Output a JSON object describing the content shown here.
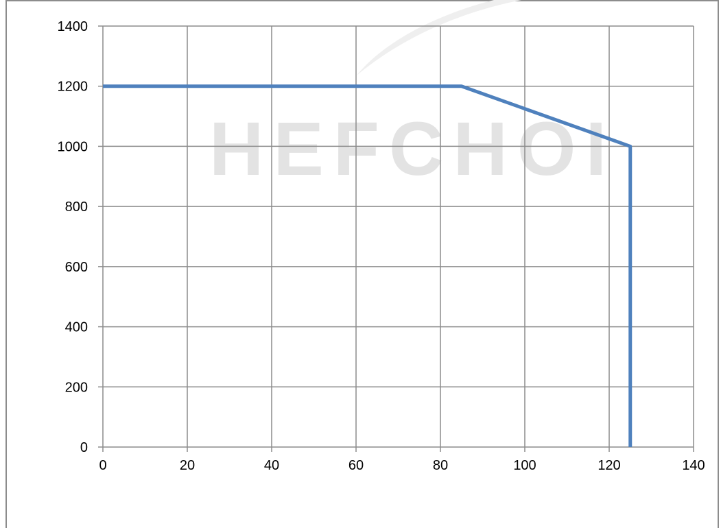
{
  "watermark": {
    "text": "HEFCHOI"
  },
  "colors": {
    "series": "#4f81bd",
    "grid": "#8c8c8c",
    "axis": "#8c8c8c",
    "watermark": "#e3e3e3"
  },
  "chart_data": {
    "type": "line",
    "title": "",
    "xlabel": "",
    "ylabel": "",
    "xlim": [
      0,
      140
    ],
    "ylim": [
      0,
      1400
    ],
    "xticks": [
      0,
      20,
      40,
      60,
      80,
      100,
      120,
      140
    ],
    "yticks": [
      0,
      200,
      400,
      600,
      800,
      1000,
      1200,
      1400
    ],
    "xtick_labels": [
      "0",
      "20",
      "40",
      "60",
      "80",
      "100",
      "120",
      "140"
    ],
    "ytick_labels": [
      "0",
      "200",
      "400",
      "600",
      "800",
      "1000",
      "1200",
      "1400"
    ],
    "grid": true,
    "legend": "none",
    "series": [
      {
        "x": [
          0,
          85,
          125,
          125
        ],
        "y": [
          1200,
          1200,
          1000,
          0
        ]
      }
    ]
  }
}
